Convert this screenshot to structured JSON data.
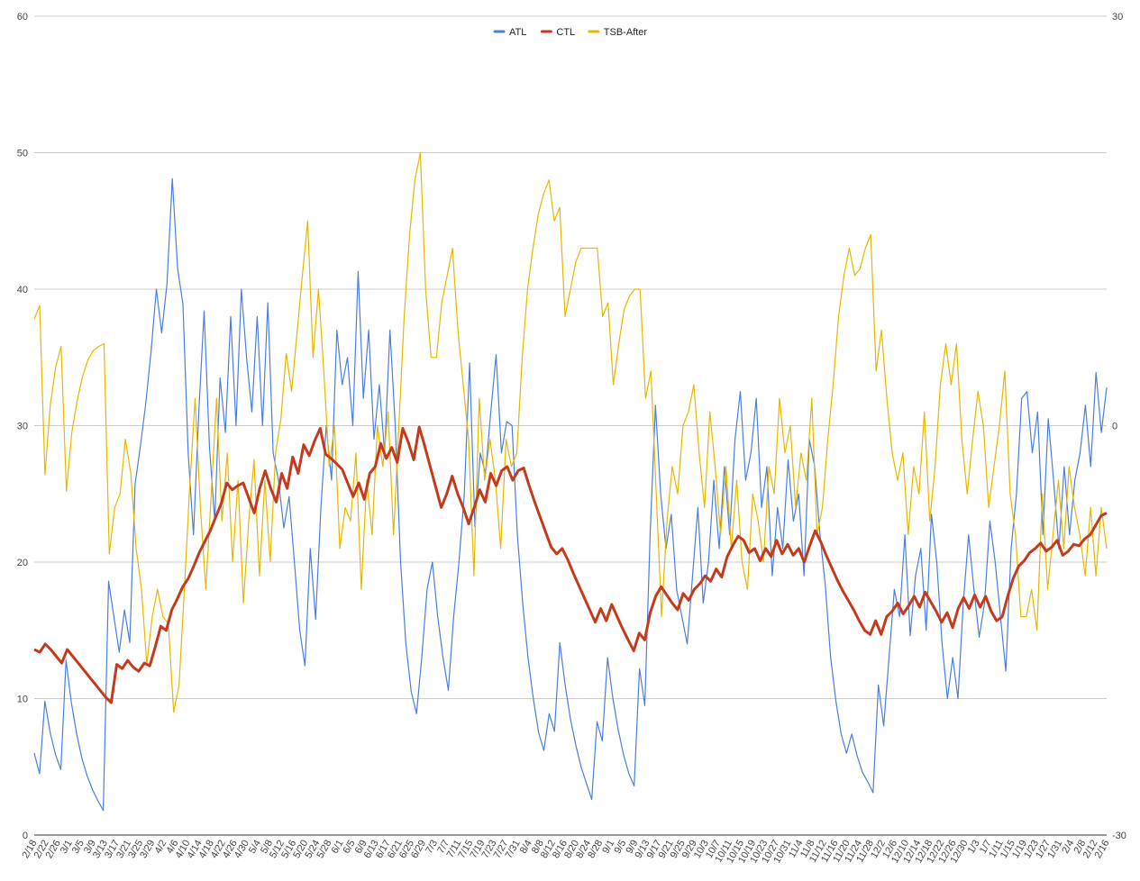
{
  "chart_data": {
    "type": "line",
    "title": "",
    "xlabel": "",
    "ylabel": "",
    "ylim_left": [
      0,
      60
    ],
    "ylim_right": [
      -30,
      30
    ],
    "left_ticks": [
      "0",
      "10",
      "20",
      "30",
      "40",
      "50",
      "60"
    ],
    "right_ticks": [
      "-30",
      "0",
      "30"
    ],
    "grid": true,
    "legend_position": "top-center",
    "x_start_date": "2/18",
    "x_tick_labels": [
      "2/18",
      "2/22",
      "2/26",
      "3/1",
      "3/5",
      "3/9",
      "3/13",
      "3/17",
      "3/21",
      "3/25",
      "3/29",
      "4/2",
      "4/6",
      "4/10",
      "4/14",
      "4/18",
      "4/22",
      "4/26",
      "4/30",
      "5/4",
      "5/8",
      "5/12",
      "5/16",
      "5/20",
      "5/24",
      "5/28",
      "6/1",
      "6/5",
      "6/9",
      "6/13",
      "6/17",
      "6/21",
      "6/25",
      "6/29",
      "7/3",
      "7/7",
      "7/11",
      "7/15",
      "7/19",
      "7/23",
      "7/27",
      "7/31",
      "8/4",
      "8/8",
      "8/12",
      "8/16",
      "8/20",
      "8/24",
      "8/28",
      "9/1",
      "9/5",
      "9/9",
      "9/13",
      "9/17",
      "9/21",
      "9/25",
      "9/29",
      "10/3",
      "10/7",
      "10/11",
      "10/15",
      "10/19",
      "10/23",
      "10/27",
      "10/31",
      "11/4",
      "11/8",
      "11/12",
      "11/16",
      "11/20",
      "11/24",
      "11/28",
      "12/2",
      "12/6",
      "12/10",
      "12/14",
      "12/18",
      "12/22",
      "12/26",
      "12/30",
      "1/3",
      "1/7",
      "1/11",
      "1/15",
      "1/19",
      "1/23",
      "1/27",
      "1/31",
      "2/4",
      "2/8",
      "2/12",
      "2/16"
    ],
    "series": [
      {
        "name": "ATL",
        "axis": "left",
        "color": "#4a7fe0",
        "values": [
          6.0,
          4.5,
          9.8,
          7.5,
          5.9,
          4.8,
          12.8,
          9.7,
          7.4,
          5.6,
          4.3,
          3.3,
          2.5,
          1.8,
          18.6,
          16.0,
          13.4,
          16.5,
          14.1,
          25.7,
          28.5,
          31.6,
          35.4,
          40.0,
          36.8,
          40.4,
          48.1,
          41.5,
          38.9,
          28.0,
          22.0,
          31.0,
          38.4,
          28.5,
          23.0,
          33.5,
          29.5,
          38.0,
          30.0,
          40.0,
          35.0,
          31.0,
          38.0,
          30.0,
          39.0,
          28.0,
          26.0,
          22.5,
          24.8,
          20.0,
          15.0,
          12.4,
          21.0,
          15.8,
          24.0,
          30.0,
          26.0,
          37.0,
          33.0,
          35.0,
          30.0,
          41.3,
          32.0,
          37.0,
          29.0,
          33.0,
          28.0,
          37.0,
          30.0,
          20.0,
          14.0,
          10.5,
          8.9,
          13.0,
          18.0,
          20.0,
          16.0,
          13.0,
          10.6,
          16.0,
          20.0,
          25.0,
          34.6,
          22.6,
          28.0,
          26.5,
          31.0,
          35.2,
          28.0,
          30.3,
          30.0,
          22.0,
          17.0,
          13.0,
          10.0,
          7.5,
          6.2,
          8.9,
          7.6,
          14.1,
          11.0,
          8.5,
          6.6,
          5.0,
          3.8,
          2.6,
          8.3,
          6.9,
          13.0,
          10.0,
          7.7,
          5.9,
          4.5,
          3.6,
          12.2,
          9.5,
          22.0,
          31.5,
          25.0,
          21.0,
          23.5,
          18.0,
          16.0,
          14.0,
          19.0,
          24.0,
          17.0,
          20.0,
          26.0,
          21.0,
          27.0,
          22.0,
          29.0,
          32.5,
          26.0,
          28.0,
          32.0,
          24.0,
          27.0,
          19.0,
          24.0,
          21.0,
          27.5,
          23.0,
          25.0,
          19.0,
          29.0,
          27.0,
          22.0,
          18.3,
          13.0,
          9.8,
          7.4,
          6.0,
          7.4,
          5.8,
          4.6,
          3.9,
          3.1,
          11.0,
          8.0,
          13.0,
          18.0,
          16.0,
          22.0,
          14.6,
          19.0,
          21.0,
          15.0,
          23.5,
          20.0,
          14.0,
          10.0,
          13.0,
          10.0,
          17.0,
          22.0,
          18.0,
          14.5,
          17.0,
          23.0,
          20.0,
          16.0,
          12.0,
          21.0,
          25.0,
          32.0,
          32.5,
          28.0,
          31.0,
          22.0,
          30.5,
          26.0,
          21.0,
          27.0,
          22.0,
          26.0,
          28.0,
          31.5,
          27.0,
          33.9,
          29.5,
          32.8
        ]
      },
      {
        "name": "CTL",
        "axis": "left",
        "color": "#c43a1c",
        "values": [
          13.6,
          13.4,
          14.0,
          13.6,
          13.1,
          12.6,
          13.6,
          13.1,
          12.6,
          12.1,
          11.6,
          11.1,
          10.6,
          10.1,
          9.7,
          12.5,
          12.2,
          12.8,
          12.3,
          12.0,
          12.6,
          12.4,
          13.8,
          15.3,
          15.0,
          16.5,
          17.3,
          18.2,
          18.8,
          19.7,
          20.7,
          21.5,
          22.3,
          23.3,
          24.3,
          25.8,
          25.3,
          25.6,
          25.8,
          24.7,
          23.6,
          25.4,
          26.7,
          25.4,
          24.4,
          26.5,
          25.4,
          27.7,
          26.5,
          28.6,
          27.8,
          28.9,
          29.8,
          27.9,
          27.6,
          27.2,
          26.8,
          25.8,
          24.8,
          25.8,
          24.6,
          26.5,
          27.0,
          28.7,
          27.6,
          28.4,
          27.3,
          29.8,
          28.8,
          27.5,
          29.9,
          28.5,
          27.0,
          25.5,
          24.0,
          25.0,
          26.3,
          25.0,
          24.0,
          22.8,
          24.0,
          25.3,
          24.4,
          26.5,
          25.6,
          26.7,
          27.0,
          26.0,
          26.7,
          26.9,
          25.6,
          24.4,
          23.3,
          22.2,
          21.1,
          20.6,
          21.0,
          20.2,
          19.2,
          18.3,
          17.4,
          16.5,
          15.6,
          16.6,
          15.7,
          16.9,
          16.0,
          15.1,
          14.3,
          13.5,
          14.8,
          14.3,
          16.3,
          17.5,
          18.2,
          17.6,
          17.0,
          16.5,
          17.7,
          17.2,
          18.0,
          18.4,
          19.0,
          18.6,
          19.5,
          18.9,
          20.4,
          21.2,
          21.9,
          21.6,
          20.7,
          21.0,
          20.1,
          21.0,
          20.4,
          21.6,
          20.6,
          21.3,
          20.5,
          21.0,
          20.0,
          21.2,
          22.3,
          21.5,
          20.5,
          19.6,
          18.7,
          17.9,
          17.2,
          16.5,
          15.7,
          15.0,
          14.7,
          15.7,
          14.7,
          16.0,
          16.4,
          17.0,
          16.2,
          16.8,
          17.5,
          16.7,
          17.8,
          17.1,
          16.4,
          15.6,
          16.3,
          15.2,
          16.6,
          17.4,
          16.6,
          17.6,
          16.7,
          17.5,
          16.4,
          15.7,
          16.0,
          17.5,
          18.8,
          19.7,
          20.1,
          20.7,
          21.0,
          21.4,
          20.8,
          21.1,
          21.6,
          20.5,
          20.8,
          21.3,
          21.2,
          21.7,
          22.0,
          22.7,
          23.4,
          23.6
        ]
      },
      {
        "name": "TSB-After",
        "axis": "right",
        "color": "#e6b800",
        "values": [
          7.8,
          8.8,
          -3.6,
          1.5,
          4.3,
          5.8,
          -4.8,
          -0.5,
          1.8,
          3.6,
          4.8,
          5.5,
          5.8,
          6.0,
          -9.4,
          -6.0,
          -5.0,
          -1.0,
          -3.5,
          -9.0,
          -12.0,
          -17.5,
          -14.0,
          -12.0,
          -14.0,
          -14.5,
          -21.0,
          -19.0,
          -12.0,
          -4.5,
          2.0,
          -6.0,
          -12.0,
          -5.0,
          2.0,
          -7.0,
          -2.0,
          -10.0,
          -4.0,
          -13.0,
          -7.0,
          -2.5,
          -11.0,
          -4.0,
          -10.0,
          -2.0,
          0.5,
          5.3,
          2.5,
          6.8,
          11.0,
          15.0,
          5.0,
          10.0,
          4.0,
          -3.0,
          0.0,
          -9.0,
          -6.0,
          -7.0,
          -2.0,
          -12.0,
          -4.0,
          -8.0,
          0.0,
          -3.0,
          1.0,
          -8.0,
          0.0,
          8.0,
          14.0,
          18.0,
          20.0,
          10.0,
          5.0,
          5.0,
          9.0,
          11.0,
          13.0,
          7.0,
          3.0,
          -1.0,
          -11.0,
          2.0,
          -4.0,
          -1.0,
          -4.0,
          -9.0,
          -1.0,
          -3.0,
          -2.0,
          5.0,
          10.0,
          13.0,
          15.5,
          17.0,
          18.0,
          15.0,
          16.0,
          8.0,
          10.0,
          12.0,
          13.0,
          13.0,
          13.0,
          13.0,
          8.0,
          9.0,
          3.0,
          6.0,
          8.5,
          9.5,
          10.0,
          10.0,
          2.0,
          4.0,
          -5.0,
          -14.0,
          -7.0,
          -3.0,
          -5.0,
          0.0,
          1.0,
          3.0,
          -2.0,
          -6.0,
          1.0,
          -3.0,
          -8.0,
          -3.0,
          -9.0,
          -4.0,
          -10.0,
          -12.0,
          -5.0,
          -7.0,
          -10.0,
          -3.0,
          -5.0,
          2.0,
          -2.0,
          0.0,
          -6.0,
          -2.0,
          -4.0,
          2.0,
          -8.0,
          -6.0,
          -1.0,
          3.0,
          8.0,
          11.0,
          13.0,
          11.0,
          11.5,
          13.0,
          14.0,
          4.0,
          7.0,
          2.0,
          -2.0,
          -4.0,
          -2.0,
          -8.0,
          -3.0,
          -5.0,
          1.0,
          -7.0,
          -3.0,
          3.0,
          6.0,
          3.0,
          6.0,
          -1.0,
          -5.0,
          -1.0,
          2.5,
          0.0,
          -6.0,
          -3.0,
          0.0,
          4.0,
          -5.0,
          -8.0,
          -14.0,
          -14.0,
          -12.0,
          -15.0,
          -5.0,
          -12.0,
          -8.0,
          -4.0,
          -9.0,
          -3.0,
          -6.0,
          -8.0,
          -11.0,
          -6.0,
          -11.0,
          -6.0,
          -9.0
        ]
      }
    ]
  }
}
